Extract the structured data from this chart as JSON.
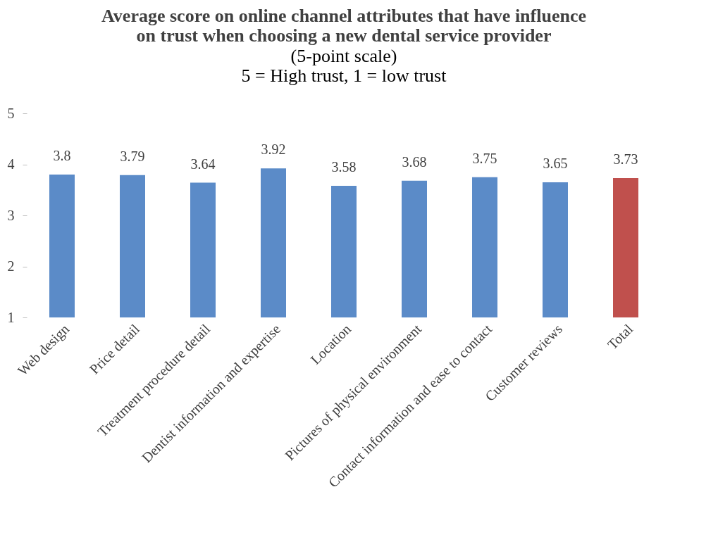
{
  "chart_data": {
    "type": "bar",
    "title": [
      "Average score on online channel attributes that have influence",
      "on trust when choosing a new dental service provider"
    ],
    "subtitle": [
      "(5-point scale)",
      "5 = High trust, 1 = low trust"
    ],
    "categories": [
      "Web design",
      "Price detail",
      "Treatment procedure detail",
      "Dentist information and expertise",
      "Location",
      "Pictures of physical environment",
      "Contact information and ease to contact",
      "Customer reviews",
      "Total"
    ],
    "values": [
      3.8,
      3.79,
      3.64,
      3.92,
      3.58,
      3.68,
      3.75,
      3.65,
      3.73
    ],
    "colors": [
      "#5b8bc8",
      "#5b8bc8",
      "#5b8bc8",
      "#5b8bc8",
      "#5b8bc8",
      "#5b8bc8",
      "#5b8bc8",
      "#5b8bc8",
      "#c0504d"
    ],
    "ylim": [
      1,
      5
    ],
    "yticks": [
      1,
      2,
      3,
      4,
      5
    ],
    "grid": false,
    "data_labels": true
  }
}
